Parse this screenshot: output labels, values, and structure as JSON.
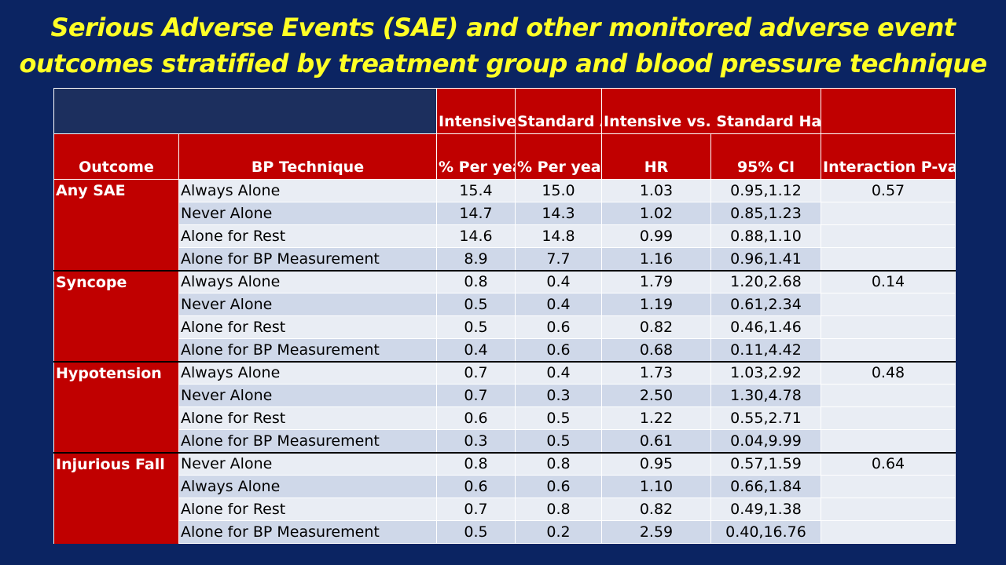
{
  "title": {
    "line1": "Serious Adverse Events (SAE) and other monitored adverse event",
    "line2": "outcomes stratified by treatment group and blood pressure technique"
  },
  "colors": {
    "background": "#0b2462",
    "title": "#ffff26",
    "header_red": "#c00000",
    "row_light": "#e9edf4",
    "row_dark": "#cfd8e9"
  },
  "table": {
    "header": {
      "intensive_arm": "Intensive Arm",
      "standard_arm": "Standard Arm",
      "hazard_ratio_group": "Intensive vs. Standard Hazard Ratio",
      "outcome": "Outcome",
      "bp_technique": "BP Technique",
      "intensive_pct": "% Per year",
      "standard_pct": "% Per year",
      "hr": "HR",
      "ci": "95% CI",
      "interaction": "Interaction P-value"
    },
    "rows": [
      {
        "outcome": "Any SAE",
        "technique": "Always Alone",
        "intensive": "15.4",
        "standard": "15.0",
        "hr": "1.03",
        "ci": "0.95,1.12",
        "p": "0.57"
      },
      {
        "outcome": "",
        "technique": "Never Alone",
        "intensive": "14.7",
        "standard": "14.3",
        "hr": "1.02",
        "ci": "0.85,1.23",
        "p": ""
      },
      {
        "outcome": "",
        "technique": "Alone for Rest",
        "intensive": "14.6",
        "standard": "14.8",
        "hr": "0.99",
        "ci": "0.88,1.10",
        "p": ""
      },
      {
        "outcome": "",
        "technique": "Alone for BP Measurement",
        "intensive": "8.9",
        "standard": "7.7",
        "hr": "1.16",
        "ci": "0.96,1.41",
        "p": ""
      },
      {
        "outcome": "Syncope",
        "technique": "Always Alone",
        "intensive": "0.8",
        "standard": "0.4",
        "hr": "1.79",
        "ci": "1.20,2.68",
        "p": "0.14"
      },
      {
        "outcome": "",
        "technique": "Never Alone",
        "intensive": "0.5",
        "standard": "0.4",
        "hr": "1.19",
        "ci": "0.61,2.34",
        "p": ""
      },
      {
        "outcome": "",
        "technique": "Alone for Rest",
        "intensive": "0.5",
        "standard": "0.6",
        "hr": "0.82",
        "ci": "0.46,1.46",
        "p": ""
      },
      {
        "outcome": "",
        "technique": "Alone for BP Measurement",
        "intensive": "0.4",
        "standard": "0.6",
        "hr": "0.68",
        "ci": "0.11,4.42",
        "p": ""
      },
      {
        "outcome": "Hypotension",
        "technique": "Always Alone",
        "intensive": "0.7",
        "standard": "0.4",
        "hr": "1.73",
        "ci": "1.03,2.92",
        "p": "0.48"
      },
      {
        "outcome": "",
        "technique": "Never Alone",
        "intensive": "0.7",
        "standard": "0.3",
        "hr": "2.50",
        "ci": "1.30,4.78",
        "p": ""
      },
      {
        "outcome": "",
        "technique": "Alone for Rest",
        "intensive": "0.6",
        "standard": "0.5",
        "hr": "1.22",
        "ci": "0.55,2.71",
        "p": ""
      },
      {
        "outcome": "",
        "technique": "Alone for BP Measurement",
        "intensive": "0.3",
        "standard": "0.5",
        "hr": "0.61",
        "ci": "0.04,9.99",
        "p": ""
      },
      {
        "outcome": "Injurious Fall",
        "technique": "Never Alone",
        "intensive": "0.8",
        "standard": "0.8",
        "hr": "0.95",
        "ci": "0.57,1.59",
        "p": "0.64"
      },
      {
        "outcome": "",
        "technique": "Always Alone",
        "intensive": "0.6",
        "standard": "0.6",
        "hr": "1.10",
        "ci": "0.66,1.84",
        "p": ""
      },
      {
        "outcome": "",
        "technique": "Alone for Rest",
        "intensive": "0.7",
        "standard": "0.8",
        "hr": "0.82",
        "ci": "0.49,1.38",
        "p": ""
      },
      {
        "outcome": "",
        "technique": "Alone for BP Measurement",
        "intensive": "0.5",
        "standard": "0.2",
        "hr": "2.59",
        "ci": "0.40,16.76",
        "p": ""
      }
    ]
  }
}
